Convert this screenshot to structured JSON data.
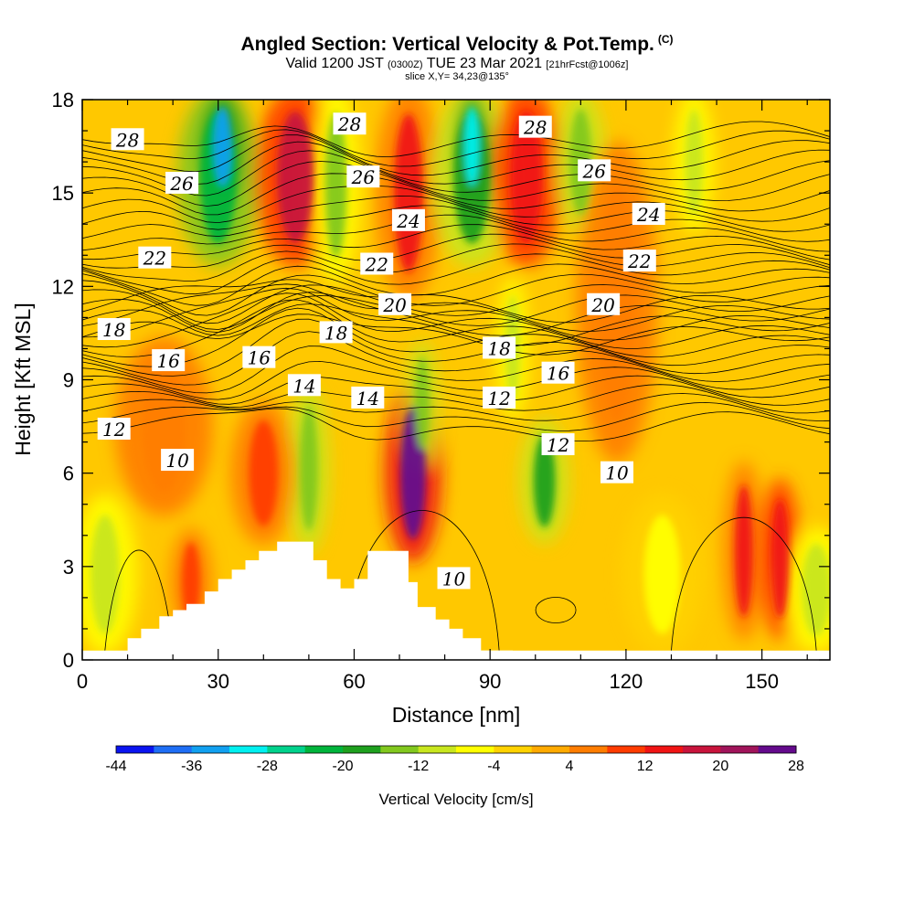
{
  "header": {
    "title": "Angled Section: Vertical Velocity & Pot.Temp.",
    "title_mark": "(C)",
    "subtitle_main": "Valid 1200 JST",
    "subtitle_utc": "(0300Z)",
    "subtitle_date": "TUE 23 Mar 2021",
    "subtitle_fcst": "[21hrFcst@1006z]",
    "slice_info": "slice X,Y= 34,23@135°"
  },
  "chart_data": {
    "type": "heatmap",
    "xlabel": "Distance [nm]",
    "ylabel": "Height [Kft MSL]",
    "xlim": [
      0,
      165
    ],
    "ylim": [
      0,
      18
    ],
    "x_ticks": [
      "0",
      "30",
      "60",
      "90",
      "120",
      "150"
    ],
    "y_ticks": [
      "0",
      "3",
      "6",
      "9",
      "12",
      "15",
      "18"
    ],
    "grid": false,
    "colorbar": {
      "label": "Vertical Velocity [cm/s]",
      "tick_labels": [
        "-44",
        "-36",
        "-28",
        "-20",
        "-12",
        "-4",
        "4",
        "12",
        "20",
        "28"
      ],
      "colors": [
        "#0a14f0",
        "#1e6ef5",
        "#11a0f0",
        "#00f0f0",
        "#00d28c",
        "#00b43c",
        "#1ea01e",
        "#82c81e",
        "#c8e61e",
        "#ffff00",
        "#ffd200",
        "#ffaa00",
        "#ff7d00",
        "#ff3c00",
        "#f01414",
        "#c8143c",
        "#a0145a",
        "#640a8c"
      ]
    },
    "contour_labels": [
      "28",
      "28",
      "28",
      "26",
      "26",
      "26",
      "24",
      "24",
      "22",
      "22",
      "22",
      "20",
      "20",
      "18",
      "18",
      "18",
      "16",
      "16",
      "16",
      "14",
      "14",
      "12",
      "12",
      "12",
      "10",
      "10",
      "10"
    ],
    "contour_label_positions": [
      {
        "x": 10,
        "y": 16.7
      },
      {
        "x": 59,
        "y": 17.2
      },
      {
        "x": 100,
        "y": 17.1
      },
      {
        "x": 22,
        "y": 15.3
      },
      {
        "x": 62,
        "y": 15.5
      },
      {
        "x": 113,
        "y": 15.7
      },
      {
        "x": 72,
        "y": 14.1
      },
      {
        "x": 125,
        "y": 14.3
      },
      {
        "x": 16,
        "y": 12.9
      },
      {
        "x": 65,
        "y": 12.7
      },
      {
        "x": 123,
        "y": 12.8
      },
      {
        "x": 69,
        "y": 11.4
      },
      {
        "x": 115,
        "y": 11.4
      },
      {
        "x": 7,
        "y": 10.6
      },
      {
        "x": 56,
        "y": 10.5
      },
      {
        "x": 92,
        "y": 10.0
      },
      {
        "x": 19,
        "y": 9.6
      },
      {
        "x": 39,
        "y": 9.7
      },
      {
        "x": 105,
        "y": 9.2
      },
      {
        "x": 49,
        "y": 8.8
      },
      {
        "x": 63,
        "y": 8.4
      },
      {
        "x": 92,
        "y": 8.4
      },
      {
        "x": 7,
        "y": 7.4
      },
      {
        "x": 105,
        "y": 6.9
      },
      {
        "x": 21,
        "y": 6.4
      },
      {
        "x": 118,
        "y": 6.0
      },
      {
        "x": 82,
        "y": 2.6
      }
    ],
    "terrain": [
      [
        10,
        0.3
      ],
      [
        13,
        0.7
      ],
      [
        17,
        1.0
      ],
      [
        20,
        1.4
      ],
      [
        23,
        1.6
      ],
      [
        27,
        1.8
      ],
      [
        30,
        2.2
      ],
      [
        33,
        2.6
      ],
      [
        36,
        2.9
      ],
      [
        39,
        3.2
      ],
      [
        43,
        3.5
      ],
      [
        46,
        3.8
      ],
      [
        51,
        3.8
      ],
      [
        54,
        3.2
      ],
      [
        57,
        2.6
      ],
      [
        60,
        2.3
      ],
      [
        63,
        2.6
      ],
      [
        66,
        3.5
      ],
      [
        72,
        3.5
      ],
      [
        74,
        2.5
      ],
      [
        78,
        1.7
      ],
      [
        81,
        1.3
      ],
      [
        84,
        1.0
      ],
      [
        88,
        0.7
      ],
      [
        91,
        0.3
      ],
      [
        95,
        0.3
      ]
    ],
    "vertical_velocity_features": [
      {
        "x": 30,
        "y0": 13,
        "y1": 18,
        "w": 5,
        "value": -22
      },
      {
        "x": 31,
        "y0": 15,
        "y1": 18,
        "w": 2.5,
        "value": -33
      },
      {
        "x": 47,
        "y0": 13,
        "y1": 18,
        "w": 5,
        "value": 16
      },
      {
        "x": 56,
        "y0": 12.5,
        "y1": 18,
        "w": 3,
        "value": -14
      },
      {
        "x": 72,
        "y0": 12,
        "y1": 18,
        "w": 4,
        "value": 14
      },
      {
        "x": 86,
        "y0": 13,
        "y1": 18,
        "w": 5,
        "value": -20
      },
      {
        "x": 86,
        "y0": 15,
        "y1": 18,
        "w": 2,
        "value": -30
      },
      {
        "x": 98,
        "y0": 13,
        "y1": 18,
        "w": 4.5,
        "value": 15
      },
      {
        "x": 110,
        "y0": 14,
        "y1": 18,
        "w": 3,
        "value": -16
      },
      {
        "x": 135,
        "y0": 14,
        "y1": 18,
        "w": 2.5,
        "value": -12
      },
      {
        "x": 73,
        "y0": 3.5,
        "y1": 8.5,
        "w": 3.5,
        "value": 26
      },
      {
        "x": 75,
        "y0": 6.5,
        "y1": 10,
        "w": 2,
        "value": -16
      },
      {
        "x": 50,
        "y0": 3.8,
        "y1": 8.5,
        "w": 2.5,
        "value": -16
      },
      {
        "x": 102,
        "y0": 4,
        "y1": 7.5,
        "w": 3,
        "value": -18
      },
      {
        "x": 95,
        "y0": 8,
        "y1": 12,
        "w": 2,
        "value": -12
      },
      {
        "x": 146,
        "y0": 1,
        "y1": 6,
        "w": 2.5,
        "value": 13
      },
      {
        "x": 154,
        "y0": 1,
        "y1": 5.5,
        "w": 2.5,
        "value": 15
      },
      {
        "x": 40,
        "y0": 4,
        "y1": 8,
        "w": 4,
        "value": 9
      },
      {
        "x": 24,
        "y0": 1,
        "y1": 4,
        "w": 2.5,
        "value": 9
      },
      {
        "x": 18,
        "y0": 5,
        "y1": 10,
        "w": 6,
        "value": 4
      },
      {
        "x": 5,
        "y0": 0.5,
        "y1": 5,
        "w": 4,
        "value": -9
      },
      {
        "x": 128,
        "y0": 0.5,
        "y1": 5,
        "w": 5,
        "value": -7
      },
      {
        "x": 162,
        "y0": 0.5,
        "y1": 4,
        "w": 4,
        "value": -9
      },
      {
        "x": 118,
        "y0": 7,
        "y1": 16,
        "w": 5,
        "value": 5
      }
    ]
  }
}
